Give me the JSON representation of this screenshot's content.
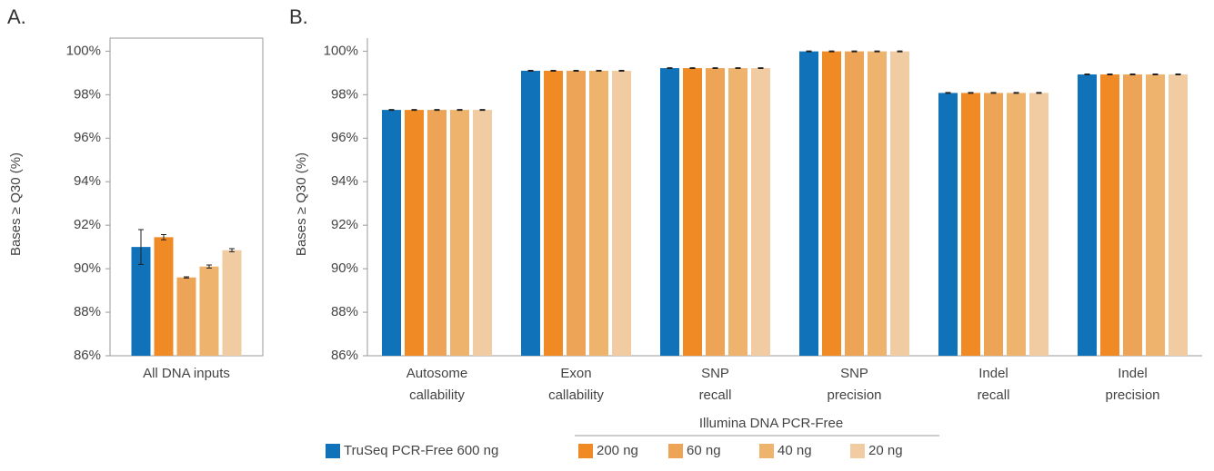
{
  "series": [
    {
      "name": "TruSeq PCR-Free 600 ng",
      "color": "#1072b9"
    },
    {
      "name": "200 ng",
      "color": "#f08a24"
    },
    {
      "name": "60 ng",
      "color": "#eda456"
    },
    {
      "name": "40 ng",
      "color": "#eeb46d"
    },
    {
      "name": "20 ng",
      "color": "#f1cba1"
    }
  ],
  "legend_group_title": "Illumina DNA PCR-Free",
  "chart_data": [
    {
      "type": "bar",
      "title": "A.",
      "y_label": "Bases ≥ Q30 (%)",
      "frame": true,
      "categories": [
        [
          "All DNA inputs"
        ]
      ],
      "series": [
        {
          "values": [
            91.0
          ],
          "errors": [
            0.8
          ]
        },
        {
          "values": [
            91.45
          ],
          "errors": [
            0.12
          ]
        },
        {
          "values": [
            89.6
          ],
          "errors": [
            0.03
          ]
        },
        {
          "values": [
            90.1
          ],
          "errors": [
            0.07
          ]
        },
        {
          "values": [
            90.85
          ],
          "errors": [
            0.07
          ]
        }
      ],
      "ylim": [
        86,
        100.6
      ],
      "yticks": [
        {
          "value": 86,
          "label": "86%"
        },
        {
          "value": 88,
          "label": "88%"
        },
        {
          "value": 90,
          "label": "90%"
        },
        {
          "value": 92,
          "label": "92%"
        },
        {
          "value": 94,
          "label": "94%"
        },
        {
          "value": 96,
          "label": "96%"
        },
        {
          "value": 98,
          "label": "98%"
        },
        {
          "value": 100,
          "label": "100%"
        }
      ]
    },
    {
      "type": "bar",
      "title": "B.",
      "y_label": "Bases ≥ Q30 (%)",
      "frame": false,
      "categories": [
        [
          "Autosome",
          "callability"
        ],
        [
          "Exon",
          "callability"
        ],
        [
          "SNP",
          "recall"
        ],
        [
          "SNP",
          "precision"
        ],
        [
          "Indel",
          "recall"
        ],
        [
          "Indel",
          "precision"
        ]
      ],
      "series": [
        {
          "values": [
            97.3,
            99.1,
            99.22,
            99.99,
            98.08,
            98.93
          ],
          "errors": [
            0.02,
            0.02,
            0.02,
            0.02,
            0.02,
            0.02
          ]
        },
        {
          "values": [
            97.3,
            99.1,
            99.22,
            99.99,
            98.08,
            98.93
          ],
          "errors": [
            0.02,
            0.02,
            0.02,
            0.02,
            0.02,
            0.02
          ]
        },
        {
          "values": [
            97.3,
            99.1,
            99.22,
            99.99,
            98.08,
            98.93
          ],
          "errors": [
            0.02,
            0.02,
            0.02,
            0.02,
            0.02,
            0.02
          ]
        },
        {
          "values": [
            97.3,
            99.1,
            99.22,
            99.99,
            98.08,
            98.93
          ],
          "errors": [
            0.02,
            0.02,
            0.02,
            0.02,
            0.02,
            0.02
          ]
        },
        {
          "values": [
            97.3,
            99.1,
            99.22,
            99.99,
            98.08,
            98.93
          ],
          "errors": [
            0.02,
            0.02,
            0.02,
            0.02,
            0.02,
            0.02
          ]
        }
      ],
      "ylim": [
        86,
        100.6
      ],
      "yticks": [
        {
          "value": 86,
          "label": "86%"
        },
        {
          "value": 88,
          "label": "88%"
        },
        {
          "value": 90,
          "label": "90%"
        },
        {
          "value": 92,
          "label": "92%"
        },
        {
          "value": 94,
          "label": "94%"
        },
        {
          "value": 96,
          "label": "96%"
        },
        {
          "value": 98,
          "label": "98%"
        },
        {
          "value": 100,
          "label": "100%"
        }
      ]
    }
  ]
}
